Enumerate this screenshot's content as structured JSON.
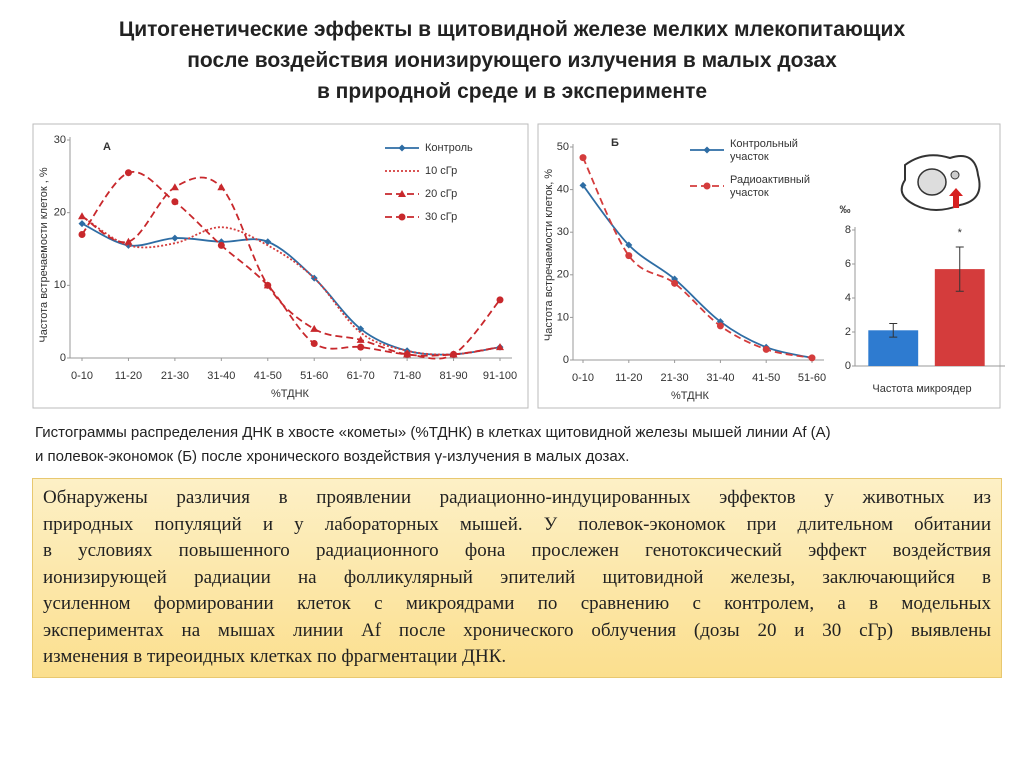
{
  "header": {
    "title": [
      "Цитогенетические эффекты в щитовидной железе мелких млекопитающих",
      "после воздействия ионизирующего излучения в малых дозах",
      "в природной среде и в эксперименте"
    ]
  },
  "chart_data": [
    {
      "type": "line",
      "panel_label": "А",
      "ylabel": "Частота встречаемости клеток , %",
      "xlabel": "%ТДНК",
      "categories": [
        "0-10",
        "11-20",
        "21-30",
        "31-40",
        "41-50",
        "51-60",
        "61-70",
        "71-80",
        "81-90",
        "91-100"
      ],
      "ylim": [
        0,
        30
      ],
      "yticks": [
        0,
        10,
        20,
        30
      ],
      "grid": false,
      "legend": "upper right",
      "series": [
        {
          "name": "Контроль",
          "color": "#2e6da4",
          "marker": "diamond",
          "line_style": "solid",
          "values": [
            18.5,
            15.5,
            16.5,
            16,
            16,
            11,
            4,
            1,
            0.5,
            1.5
          ]
        },
        {
          "name": "10 сГр",
          "color": "#d43c3c",
          "marker": "none",
          "line_style": "dotted",
          "values": [
            19.5,
            15.5,
            15.8,
            18,
            15.5,
            11,
            3.5,
            1,
            0.5,
            1.5
          ]
        },
        {
          "name": "20 сГр",
          "color": "#c8282c",
          "marker": "triangle",
          "line_style": "dashed",
          "values": [
            19.5,
            16,
            23.5,
            23.5,
            10,
            4,
            2.5,
            0.5,
            0.5,
            1.5
          ]
        },
        {
          "name": "30 сГр",
          "color": "#c8282c",
          "marker": "circle",
          "line_style": "dashed",
          "values": [
            17,
            25.5,
            21.5,
            15.5,
            10,
            2,
            1.5,
            0.5,
            0.5,
            8
          ]
        }
      ]
    },
    {
      "type": "line",
      "panel_label": "Б",
      "ylabel": "Частота встречаемости клеток, %",
      "xlabel": "%ТДНК",
      "categories": [
        "0-10",
        "11-20",
        "21-30",
        "31-40",
        "41-50",
        "51-60"
      ],
      "ylim": [
        0,
        50
      ],
      "yticks": [
        0,
        10,
        20,
        30,
        40,
        50
      ],
      "grid": false,
      "legend": "upper right",
      "series": [
        {
          "name": "Контрольный участок",
          "color": "#2e6da4",
          "marker": "diamond",
          "line_style": "solid",
          "values": [
            41,
            27,
            19,
            9,
            3,
            0.5
          ]
        },
        {
          "name": "Радиоактивный участок",
          "color": "#d43c3c",
          "marker": "circle",
          "line_style": "dashed",
          "values": [
            47.5,
            24.5,
            18,
            8,
            2.5,
            0.5
          ]
        }
      ]
    },
    {
      "type": "bar",
      "ylabel": "‰",
      "xlabel": "Частота микроядер",
      "annotation": "*",
      "categories": [
        null,
        null
      ],
      "values": [
        2.1,
        5.7
      ],
      "errors": [
        0.4,
        1.3
      ],
      "colors": [
        "#2e7bd0",
        "#d43c3c"
      ],
      "ylim": [
        0,
        8
      ],
      "yticks": [
        0,
        2,
        4,
        6,
        8
      ]
    }
  ],
  "caption": [
    "Гистограммы распределения ДНК в хвосте «кометы» (%ТДНК) в клетках щитовидной железы мышей линии Af (А)",
    "и полевок-экономок (Б) после хронического воздействия γ-излучения в малых дозах."
  ],
  "body": [
    "Обнаружены различия в проявлении радиационно-индуцированных эффектов у животных из",
    "природных популяций и у лабораторных мышей. У полевок-экономок при длительном обитании",
    "в условиях повышенного радиационного фона прослежен генотоксический эффект воздействия",
    "ионизирующей радиации на фолликулярный эпителий щитовидной железы, заключающийся в",
    "усиленном формировании клеток с микроядрами по сравнению с контролем, а в модельных",
    "экспериментах на мышах линии Af после хронического облучения (дозы 20 и 30 сГр) выявлены",
    "изменения в тиреоидных клетках по фрагментации ДНК."
  ]
}
